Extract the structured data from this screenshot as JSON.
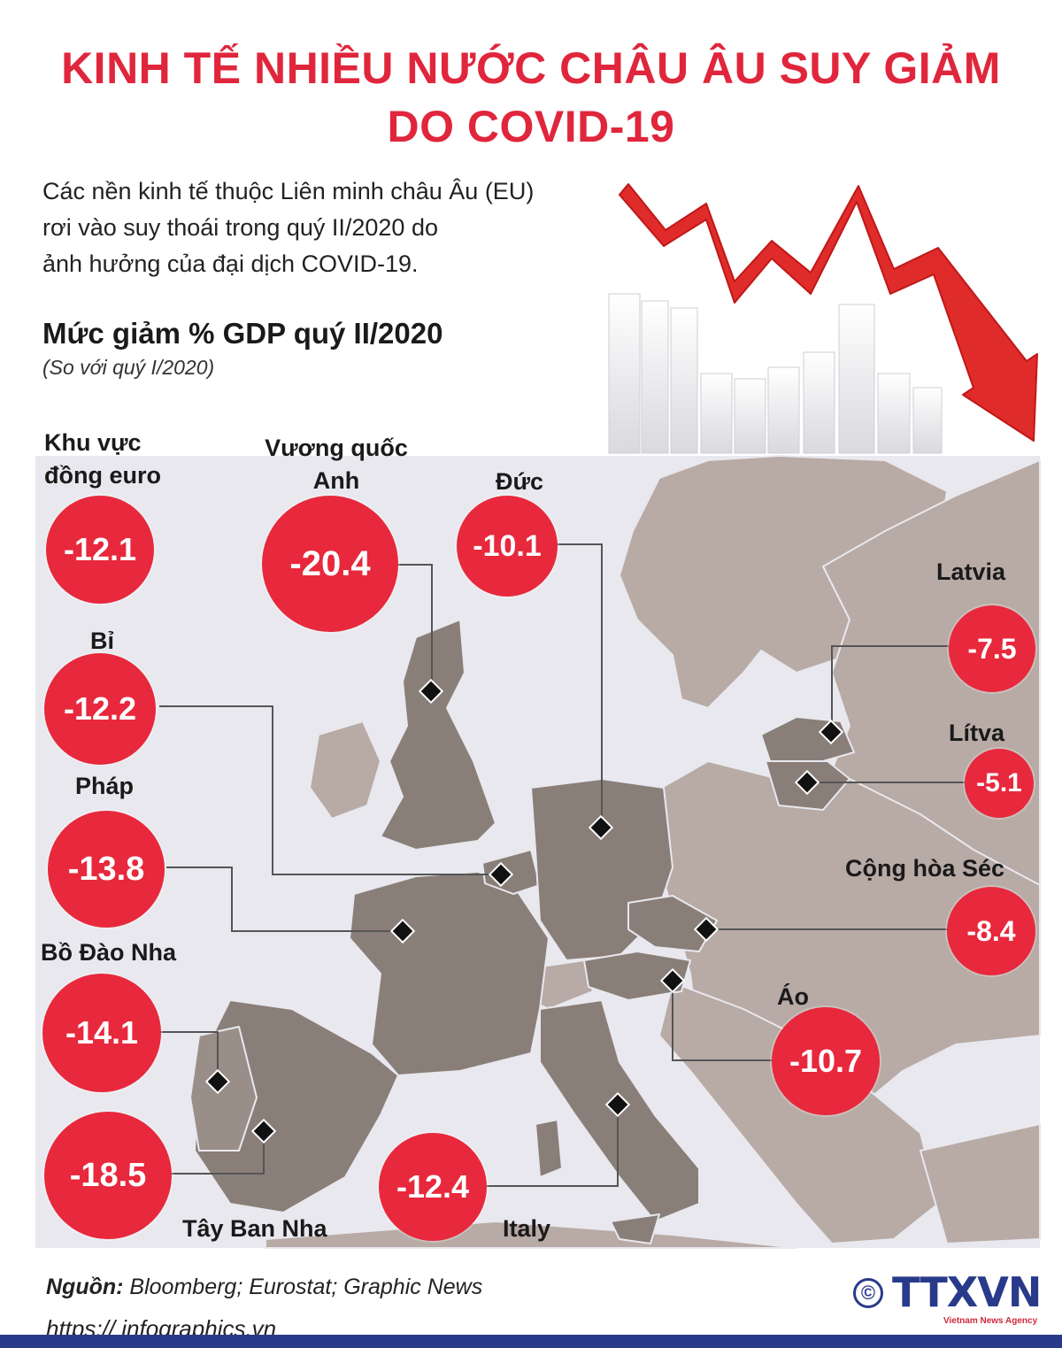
{
  "header": {
    "title_line1": "KINH TẾ NHIỀU NƯỚC CHÂU ÂU SUY GIẢM",
    "title_line2": "DO COVID-19",
    "intro_line1": "Các nền kinh tế thuộc Liên minh châu Âu (EU)",
    "intro_line2": "rơi vào suy thoái trong quý II/2020 do",
    "intro_line3": "ảnh hưởng của đại dịch COVID-19."
  },
  "chart_data": {
    "type": "bubble-map",
    "title": "Mức giảm % GDP quý II/2020",
    "subtitle": "(So với quý I/2020)",
    "unit": "%",
    "points": [
      {
        "label_line1": "Khu vực",
        "label_line2": "đồng euro",
        "value": "-12.1",
        "number": -12.1
      },
      {
        "label_line1": "Vương quốc",
        "label_line2": "Anh",
        "value": "-20.4",
        "number": -20.4
      },
      {
        "label_line1": "Đức",
        "label_line2": "",
        "value": "-10.1",
        "number": -10.1
      },
      {
        "label_line1": "Latvia",
        "label_line2": "",
        "value": "-7.5",
        "number": -7.5
      },
      {
        "label_line1": "Bỉ",
        "label_line2": "",
        "value": "-12.2",
        "number": -12.2
      },
      {
        "label_line1": "Lítva",
        "label_line2": "",
        "value": "-5.1",
        "number": -5.1
      },
      {
        "label_line1": "Pháp",
        "label_line2": "",
        "value": "-13.8",
        "number": -13.8
      },
      {
        "label_line1": "Cộng hòa Séc",
        "label_line2": "",
        "value": "-8.4",
        "number": -8.4
      },
      {
        "label_line1": "Bồ Đào Nha",
        "label_line2": "",
        "value": "-14.1",
        "number": -14.1
      },
      {
        "label_line1": "Áo",
        "label_line2": "",
        "value": "-10.7",
        "number": -10.7
      },
      {
        "label_line1": "Tây Ban Nha",
        "label_line2": "",
        "value": "-18.5",
        "number": -18.5
      },
      {
        "label_line1": "Italy",
        "label_line2": "",
        "value": "-12.4",
        "number": -12.4
      }
    ]
  },
  "footer": {
    "source_label": "Nguồn:",
    "source_text": "Bloomberg; Eurostat; Graphic News",
    "url": "https:// infographics.vn",
    "logo_text": "TTXVN",
    "logo_sub": "Vietnam News Agency",
    "copyright": "©"
  },
  "colors": {
    "accent_red": "#e0263c",
    "bubble_red": "#e8283c",
    "land_light": "#b8aaa5",
    "land_dark": "#8a7e79",
    "sea": "#e8e8ee",
    "brand_blue": "#2a3a8a"
  }
}
